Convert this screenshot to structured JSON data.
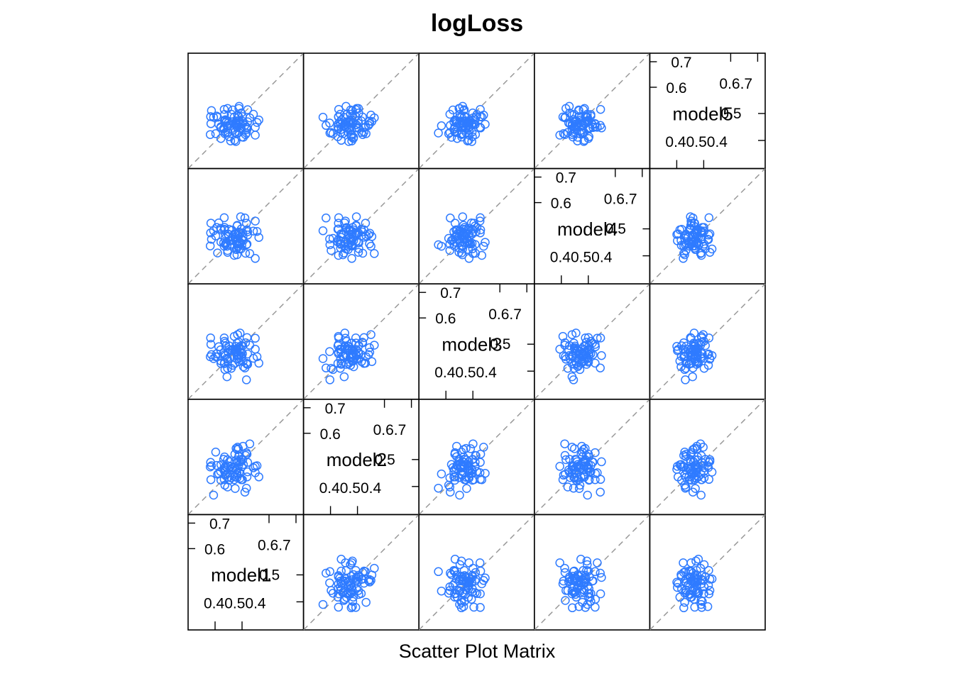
{
  "chart_data": {
    "type": "scatter",
    "title": "logLoss",
    "xlabel": "Scatter Plot Matrix",
    "variables": [
      "model1",
      "model2",
      "model3",
      "model4",
      "model5"
    ],
    "axis_range": [
      0.35,
      0.73
    ],
    "ticks": {
      "low_labels": [
        "0.4",
        "0.5",
        "0.4"
      ],
      "high_labels": [
        "0.6",
        "0.7",
        "0.6",
        "0.7"
      ],
      "mid_label": "0.5"
    },
    "point_color": "#2F7BFF",
    "reference_line_color": "#999999",
    "reference_line": "y = x (dashed)",
    "layout": "lower-left to upper-right diagonal",
    "n_points": 80,
    "data": {
      "model1": [
        0.512,
        0.458,
        0.517,
        0.527,
        0.511,
        0.511,
        0.492,
        0.509,
        0.503,
        0.473,
        0.546,
        0.478,
        0.485,
        0.47,
        0.481,
        0.497,
        0.512,
        0.502,
        0.425,
        0.441,
        0.516,
        0.469,
        0.434,
        0.513,
        0.537,
        0.49,
        0.521,
        0.423,
        0.525,
        0.457,
        0.504,
        0.542,
        0.516,
        0.495,
        0.529,
        0.571,
        0.48,
        0.424,
        0.47,
        0.531,
        0.521,
        0.474,
        0.498,
        0.53,
        0.517,
        0.47,
        0.471,
        0.565,
        0.511,
        0.507,
        0.544,
        0.517,
        0.482,
        0.523,
        0.469,
        0.444,
        0.539,
        0.509,
        0.525,
        0.48,
        0.544,
        0.505,
        0.467,
        0.577,
        0.486,
        0.447,
        0.532,
        0.477,
        0.451,
        0.458,
        0.473,
        0.518,
        0.427,
        0.553,
        0.583,
        0.571,
        0.542,
        0.511,
        0.546,
        0.508
      ],
      "model2": [
        0.564,
        0.463,
        0.525,
        0.508,
        0.48,
        0.472,
        0.471,
        0.497,
        0.474,
        0.479,
        0.491,
        0.484,
        0.463,
        0.503,
        0.511,
        0.505,
        0.523,
        0.465,
        0.465,
        0.556,
        0.567,
        0.498,
        0.414,
        0.572,
        0.424,
        0.509,
        0.486,
        0.507,
        0.465,
        0.492,
        0.549,
        0.437,
        0.512,
        0.499,
        0.465,
        0.509,
        0.531,
        0.522,
        0.492,
        0.575,
        0.47,
        0.496,
        0.503,
        0.531,
        0.541,
        0.54,
        0.447,
        0.504,
        0.487,
        0.499,
        0.549,
        0.544,
        0.473,
        0.524,
        0.466,
        0.512,
        0.545,
        0.53,
        0.532,
        0.441,
        0.474,
        0.436,
        0.532,
        0.511,
        0.524,
        0.483,
        0.515,
        0.505,
        0.485,
        0.514,
        0.509,
        0.49,
        0.511,
        0.583,
        0.474,
        0.488,
        0.554,
        0.523,
        0.522,
        0.568
      ],
      "model3": [
        0.497,
        0.468,
        0.484,
        0.491,
        0.493,
        0.482,
        0.452,
        0.513,
        0.514,
        0.493,
        0.465,
        0.424,
        0.526,
        0.472,
        0.475,
        0.462,
        0.497,
        0.557,
        0.531,
        0.49,
        0.52,
        0.467,
        0.484,
        0.563,
        0.453,
        0.51,
        0.568,
        0.49,
        0.505,
        0.513,
        0.468,
        0.414,
        0.495,
        0.511,
        0.5,
        0.515,
        0.482,
        0.552,
        0.541,
        0.474,
        0.515,
        0.525,
        0.515,
        0.526,
        0.474,
        0.497,
        0.448,
        0.485,
        0.516,
        0.524,
        0.553,
        0.538,
        0.505,
        0.494,
        0.552,
        0.5,
        0.536,
        0.507,
        0.527,
        0.452,
        0.465,
        0.507,
        0.502,
        0.49,
        0.514,
        0.49,
        0.457,
        0.485,
        0.523,
        0.476,
        0.535,
        0.494,
        0.497,
        0.528,
        0.469,
        0.551,
        0.469,
        0.535,
        0.499,
        0.505
      ],
      "model4": [
        0.512,
        0.488,
        0.515,
        0.477,
        0.446,
        0.468,
        0.481,
        0.463,
        0.515,
        0.514,
        0.522,
        0.474,
        0.53,
        0.528,
        0.514,
        0.496,
        0.543,
        0.444,
        0.55,
        0.508,
        0.482,
        0.474,
        0.525,
        0.474,
        0.567,
        0.492,
        0.487,
        0.475,
        0.531,
        0.533,
        0.504,
        0.479,
        0.475,
        0.527,
        0.496,
        0.434,
        0.454,
        0.518,
        0.536,
        0.506,
        0.483,
        0.484,
        0.503,
        0.518,
        0.509,
        0.53,
        0.5,
        0.524,
        0.482,
        0.513,
        0.528,
        0.521,
        0.514,
        0.571,
        0.568,
        0.536,
        0.451,
        0.487,
        0.466,
        0.46,
        0.481,
        0.498,
        0.485,
        0.523,
        0.491,
        0.452,
        0.493,
        0.486,
        0.551,
        0.528,
        0.48,
        0.465,
        0.497,
        0.45,
        0.503,
        0.557,
        0.55,
        0.541,
        0.511,
        0.517
      ],
      "model5": [
        0.492,
        0.488,
        0.548,
        0.454,
        0.465,
        0.497,
        0.529,
        0.5,
        0.443,
        0.501,
        0.504,
        0.491,
        0.455,
        0.509,
        0.499,
        0.543,
        0.485,
        0.52,
        0.498,
        0.465,
        0.506,
        0.481,
        0.519,
        0.526,
        0.492,
        0.441,
        0.496,
        0.462,
        0.481,
        0.484,
        0.47,
        0.467,
        0.498,
        0.504,
        0.521,
        0.46,
        0.548,
        0.521,
        0.528,
        0.505,
        0.503,
        0.47,
        0.476,
        0.499,
        0.469,
        0.507,
        0.465,
        0.529,
        0.488,
        0.439,
        0.484,
        0.52,
        0.469,
        0.484,
        0.545,
        0.523,
        0.462,
        0.507,
        0.533,
        0.469,
        0.479,
        0.5,
        0.483,
        0.502,
        0.494,
        0.519,
        0.453,
        0.507,
        0.496,
        0.449,
        0.511,
        0.555,
        0.541,
        0.517,
        0.51,
        0.486,
        0.487,
        0.495,
        0.544,
        0.498
      ]
    }
  }
}
